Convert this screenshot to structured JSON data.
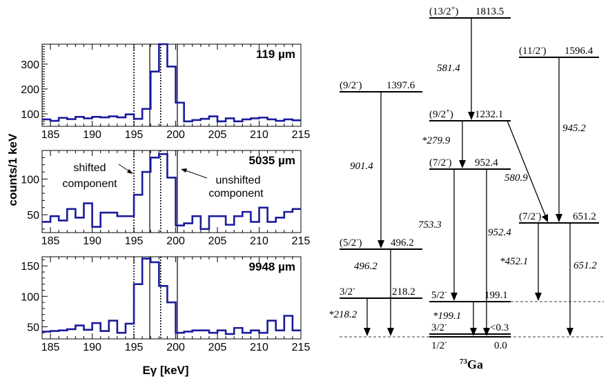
{
  "chart_data": {
    "type": "line",
    "ylabel": "counts/1 keV",
    "xlabel": "Eγ [keV]",
    "xlim": [
      184,
      215
    ],
    "xticks": [
      "185",
      "190",
      "195",
      "200",
      "205",
      "210",
      "215"
    ],
    "vlines_dotted": [
      195,
      198.2
    ],
    "vlines_solid": [
      196.9,
      200.2
    ],
    "panels": [
      {
        "label": "119 µm",
        "ylim": [
          50,
          380
        ],
        "yticks": [
          "100",
          "200",
          "300"
        ],
        "x": [
          184,
          185,
          186,
          187,
          188,
          189,
          190,
          191,
          192,
          193,
          194,
          195,
          196,
          197,
          198,
          199,
          200,
          201,
          202,
          203,
          204,
          205,
          206,
          207,
          208,
          209,
          210,
          211,
          212,
          213,
          214
        ],
        "y": [
          78,
          72,
          84,
          79,
          88,
          82,
          88,
          86,
          90,
          86,
          98,
          80,
          120,
          270,
          380,
          290,
          145,
          70,
          75,
          80,
          90,
          70,
          82,
          70,
          78,
          82,
          85,
          78,
          72,
          78,
          74
        ]
      },
      {
        "label": "5035 µm",
        "ylim": [
          25,
          140
        ],
        "yticks": [
          "50",
          "100"
        ],
        "x": [
          184,
          185,
          186,
          187,
          188,
          189,
          190,
          191,
          192,
          193,
          194,
          195,
          196,
          197,
          198,
          199,
          200,
          201,
          202,
          203,
          204,
          205,
          206,
          207,
          208,
          209,
          210,
          211,
          212,
          213,
          214
        ],
        "y": [
          40,
          48,
          42,
          58,
          46,
          66,
          33,
          53,
          53,
          48,
          48,
          78,
          110,
          130,
          135,
          102,
          35,
          38,
          48,
          30,
          48,
          48,
          36,
          48,
          54,
          40,
          60,
          40,
          46,
          54,
          58
        ],
        "annotations": [
          "shifted component",
          "unshifted component"
        ]
      },
      {
        "label": "9948 µm",
        "ylim": [
          30,
          165
        ],
        "yticks": [
          "50",
          "100",
          "150"
        ],
        "x": [
          184,
          185,
          186,
          187,
          188,
          189,
          190,
          191,
          192,
          193,
          194,
          195,
          196,
          197,
          198,
          199,
          200,
          201,
          202,
          203,
          204,
          205,
          206,
          207,
          208,
          209,
          210,
          211,
          212,
          213,
          214
        ],
        "y": [
          42,
          43,
          44,
          46,
          52,
          45,
          56,
          43,
          60,
          40,
          55,
          120,
          162,
          156,
          117,
          90,
          40,
          42,
          44,
          44,
          40,
          44,
          38,
          48,
          40,
          44,
          40,
          60,
          44,
          68,
          44
        ]
      }
    ]
  },
  "level_scheme": {
    "nucleus_mass": "73",
    "nucleus_symbol": "Ga",
    "levels": [
      {
        "spin_paren": "(13/2",
        "parity": "+",
        "close": ")",
        "energy": "1813.5"
      },
      {
        "spin_paren": "(11/2",
        "parity": "-",
        "close": ")",
        "energy": "1596.4"
      },
      {
        "spin_paren": "(9/2",
        "parity": "-",
        "close": ")",
        "energy": "1397.6"
      },
      {
        "spin_paren": "(9/2",
        "parity": "+",
        "close": ")",
        "energy": "1232.1"
      },
      {
        "spin_paren": "(7/2",
        "parity": "-",
        "close": ")",
        "energy": "952.4"
      },
      {
        "spin_paren": "(7/2",
        "parity": "-",
        "close": ")",
        "energy": "651.2"
      },
      {
        "spin_paren": "(5/2",
        "parity": "-",
        "close": ")",
        "energy": "496.2"
      },
      {
        "spin_paren": "3/2",
        "parity": "-",
        "close": "",
        "energy": "218.2"
      },
      {
        "spin_paren": "5/2",
        "parity": "-",
        "close": "",
        "energy": "199.1"
      },
      {
        "spin_paren": "3/2",
        "parity": "-",
        "close": "",
        "energy": "<0.3"
      },
      {
        "spin_paren": "1/2",
        "parity": "-",
        "close": "",
        "energy": "0.0"
      }
    ],
    "transitions": [
      "581.4",
      "945.2",
      "901.4",
      "*279.9",
      "580.9",
      "753.3",
      "952.4",
      "*452.1",
      "651.2",
      "496.2",
      "*218.2",
      "*199.1"
    ]
  }
}
